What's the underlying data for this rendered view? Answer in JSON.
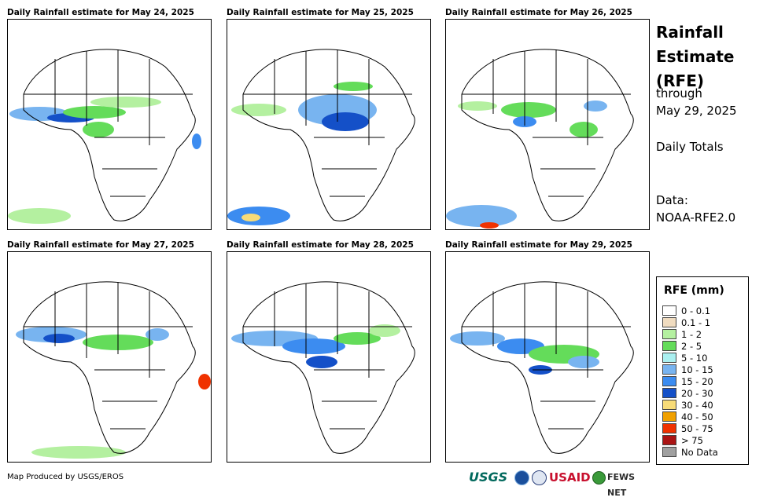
{
  "panels": [
    {
      "title": "Daily Rainfall estimate for May 24, 2025"
    },
    {
      "title": "Daily Rainfall estimate for May 25, 2025"
    },
    {
      "title": "Daily Rainfall estimate for May 26, 2025"
    },
    {
      "title": "Daily Rainfall estimate for May 27, 2025"
    },
    {
      "title": "Daily Rainfall estimate for May 28, 2025"
    },
    {
      "title": "Daily Rainfall estimate for May 29, 2025"
    }
  ],
  "side": {
    "title_line1": "Rainfall",
    "title_line2": "Estimate",
    "title_line3": "(RFE)",
    "through": "through",
    "date": "May 29, 2025",
    "totals": "Daily Totals",
    "data_label": "Data:",
    "data_source": "NOAA-RFE2.0"
  },
  "legend": {
    "title": "RFE (mm)",
    "items": [
      {
        "label": "0 - 0.1",
        "color": "#ffffff"
      },
      {
        "label": "0.1 - 1",
        "color": "#f0dcc0"
      },
      {
        "label": "1 - 2",
        "color": "#b4f0a0"
      },
      {
        "label": "2 - 5",
        "color": "#64dc5a"
      },
      {
        "label": "5 - 10",
        "color": "#aaf0f0"
      },
      {
        "label": "10 - 15",
        "color": "#78b4f0"
      },
      {
        "label": "15 - 20",
        "color": "#3c8cf0"
      },
      {
        "label": "20 - 30",
        "color": "#1450c8"
      },
      {
        "label": "30 - 40",
        "color": "#f8dc78"
      },
      {
        "label": "40 - 50",
        "color": "#f0a000"
      },
      {
        "label": "50 - 75",
        "color": "#f03200"
      },
      {
        "label": "> 75",
        "color": "#aa1414"
      },
      {
        "label": "No Data",
        "color": "#a0a0a0"
      }
    ]
  },
  "footer": {
    "credit": "Map Produced by USGS/EROS",
    "logo_usgs": "USGS",
    "logo_usaid": "USAID",
    "logo_fews": "FEWS NET"
  }
}
